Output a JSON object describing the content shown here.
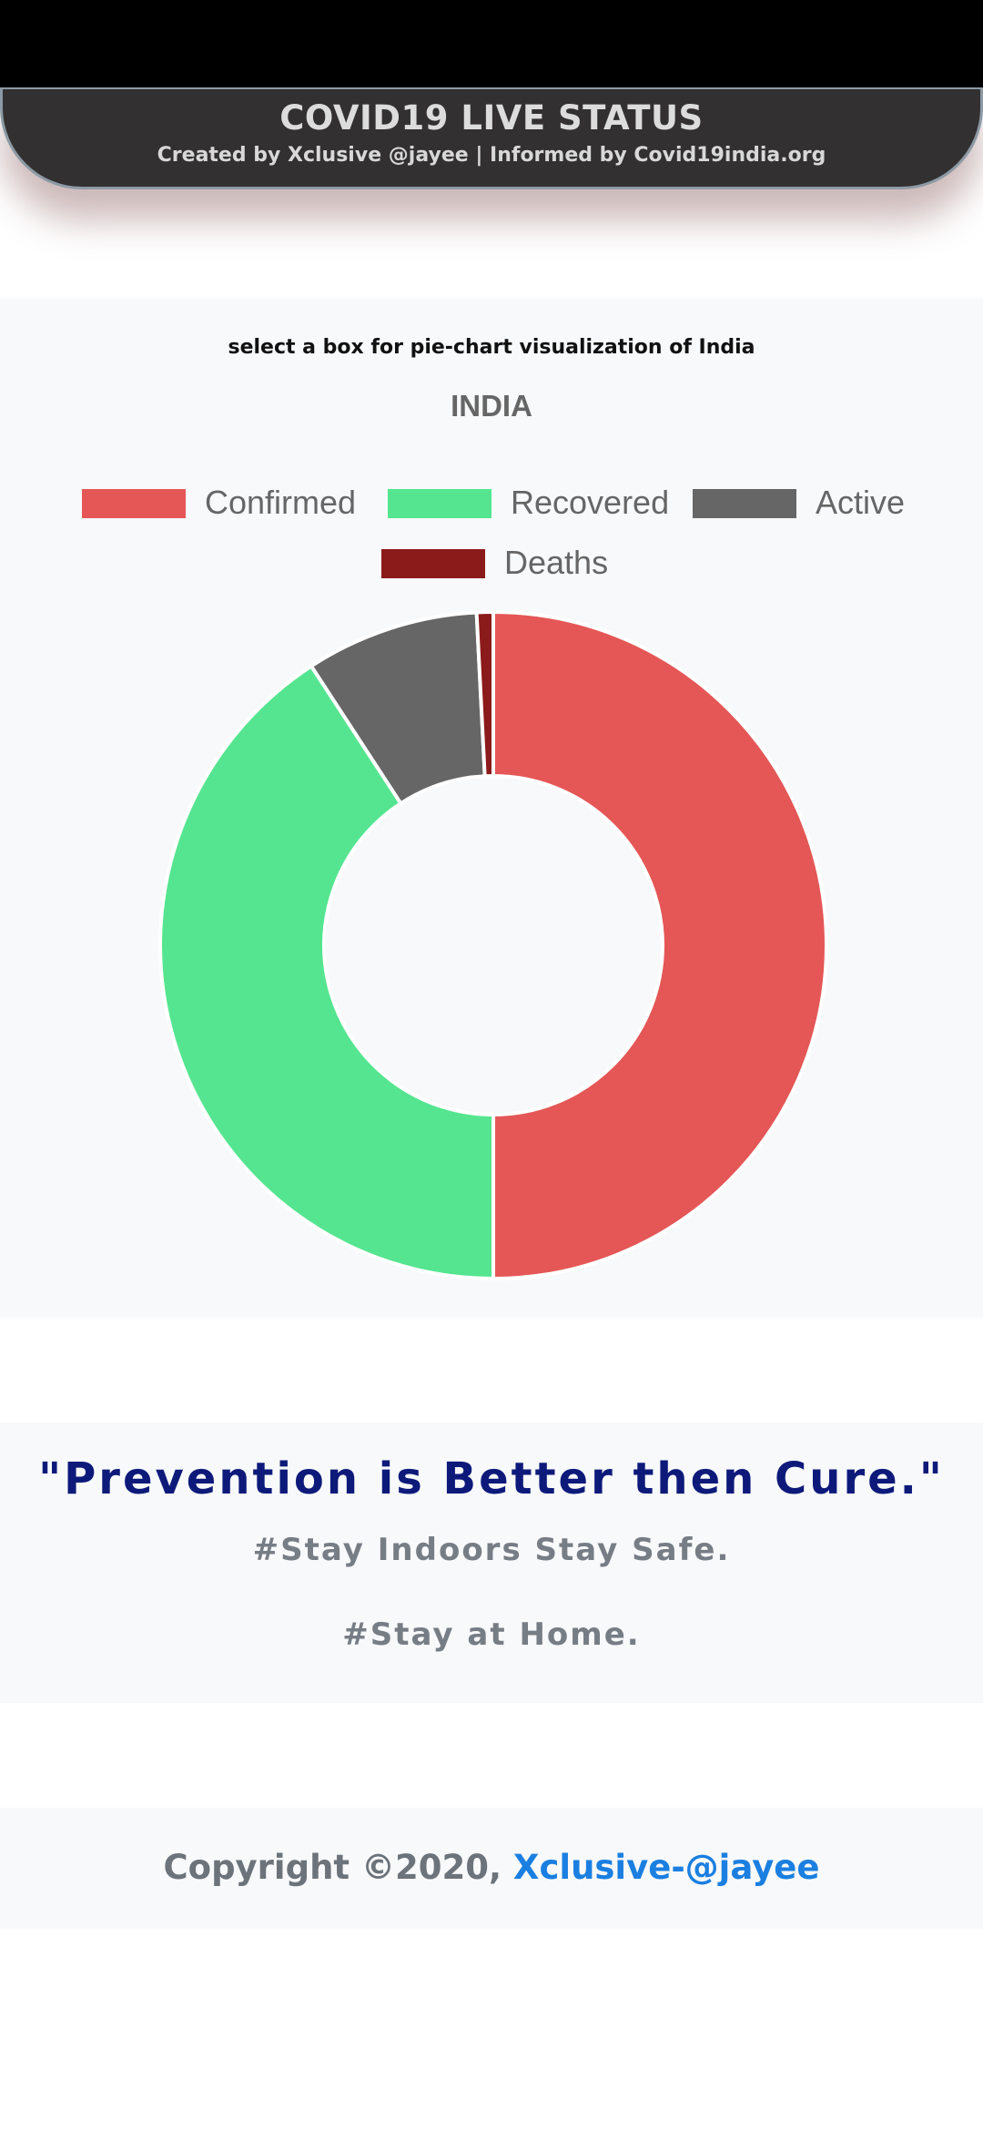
{
  "header": {
    "title": "COVID19 LIVE STATUS",
    "subtitle": "Created by Xclusive @jayee | Informed by Covid19india.org"
  },
  "chart_section": {
    "instruction": "select a box for pie-chart visualization of India"
  },
  "chart_data": {
    "type": "pie",
    "variant": "doughnut",
    "title": "INDIA",
    "labels": [
      "Confirmed",
      "Recovered",
      "Active",
      "Deaths"
    ],
    "values": [
      50.0,
      40.8,
      8.4,
      0.8
    ],
    "colors": [
      "#e45756",
      "#55e590",
      "#666666",
      "#8b1a1a"
    ],
    "legend_position": "top"
  },
  "quote_section": {
    "quote": "\"Prevention is Better then Cure.\"",
    "line1": "#Stay Indoors Stay Safe.",
    "line2": "#Stay at Home."
  },
  "footer": {
    "copyright": "Copyright ©2020, ",
    "author_link": "Xclusive-@jayee"
  }
}
